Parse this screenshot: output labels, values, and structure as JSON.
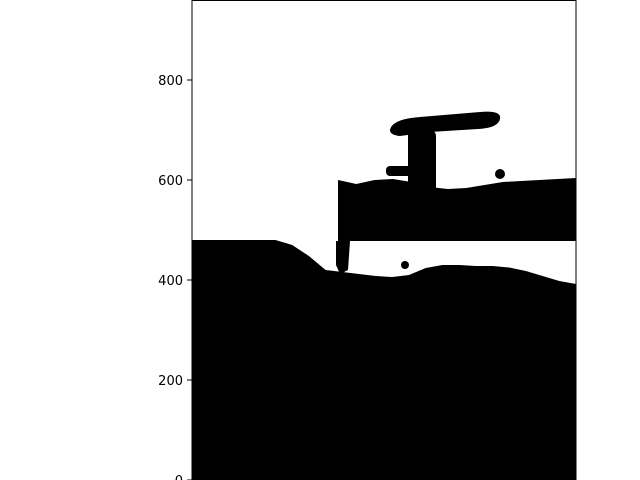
{
  "chart_data": {
    "type": "heatmap",
    "title": "",
    "xlabel": "",
    "ylabel": "",
    "ylim": [
      0,
      960
    ],
    "yticks": [
      0,
      200,
      400,
      600,
      800
    ],
    "ytick_labels": [
      "0",
      "200",
      "400",
      "600",
      "800"
    ],
    "x_axis_visible": false,
    "grid": false,
    "colors": {
      "filled": "#000000",
      "empty": "#ffffff",
      "axis": "#000000"
    },
    "filled_regions": [
      {
        "name": "lower-mass",
        "description_units": "y data units",
        "outline_y_at_steps": [
          480,
          480,
          480,
          480,
          480,
          480,
          470,
          448,
          420,
          416,
          412,
          408,
          406,
          410,
          424,
          430,
          430,
          428,
          428,
          425,
          418,
          408,
          398,
          392
        ]
      },
      {
        "name": "upper-band",
        "top_y_at_steps": [
          600,
          592,
          600,
          602,
          596,
          586,
          582,
          584,
          590,
          596,
          598,
          600,
          602,
          604
        ],
        "bottom_y": 478
      },
      {
        "name": "t-stem",
        "y_range": [
          540,
          700
        ]
      },
      {
        "name": "t-bar",
        "y_range": [
          680,
          740
        ]
      }
    ]
  }
}
